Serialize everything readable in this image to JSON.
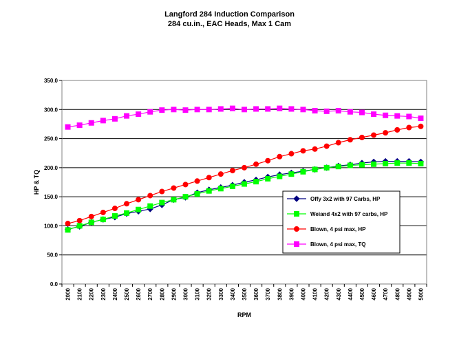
{
  "chart_data": {
    "type": "line",
    "title": "Langford 284 Induction Comparison",
    "subtitle": "284 cu.in., EAC Heads, Max 1 Cam",
    "xlabel": "RPM",
    "ylabel": "HP & TQ",
    "ylim": [
      0,
      350
    ],
    "yticks": [
      "0.0",
      "50.0",
      "100.0",
      "150.0",
      "200.0",
      "250.0",
      "300.0",
      "350.0"
    ],
    "grid": "horizontal",
    "legend_position": "right",
    "categories": [
      "2000",
      "2100",
      "2200",
      "2300",
      "2400",
      "2500",
      "2600",
      "2700",
      "2800",
      "2900",
      "3000",
      "3100",
      "3200",
      "3300",
      "3400",
      "3500",
      "3600",
      "3700",
      "3800",
      "3900",
      "4000",
      "4100",
      "4200",
      "4300",
      "4400",
      "4500",
      "4600",
      "4700",
      "4800",
      "4900",
      "5000"
    ],
    "series": [
      {
        "name": "Offy 3x2 with 97 Carbs, HP",
        "color": "#000080",
        "marker": "diamond",
        "values": [
          94,
          99,
          106,
          111,
          115,
          121,
          125,
          129,
          136,
          145,
          149,
          157,
          162,
          166,
          170,
          175,
          179,
          184,
          188,
          191,
          194,
          197,
          200,
          203,
          205,
          208,
          210,
          211,
          211,
          211,
          210
        ]
      },
      {
        "name": "Weiand 4x2 with 97 carbs, HP",
        "color": "#00ff00",
        "marker": "square",
        "values": [
          93,
          100,
          106,
          111,
          117,
          122,
          128,
          134,
          140,
          145,
          150,
          155,
          160,
          164,
          168,
          172,
          176,
          181,
          185,
          189,
          193,
          197,
          200,
          202,
          204,
          205,
          206,
          207,
          208,
          208,
          207
        ]
      },
      {
        "name": "Blown, 4 psi max, HP",
        "color": "#ff0000",
        "marker": "circle",
        "values": [
          104,
          109,
          116,
          123,
          130,
          138,
          145,
          152,
          159,
          165,
          171,
          177,
          183,
          189,
          195,
          200,
          206,
          212,
          219,
          224,
          229,
          232,
          237,
          243,
          248,
          252,
          256,
          260,
          265,
          269,
          271
        ]
      },
      {
        "name": "Blown, 4 psi max, TQ",
        "color": "#ff00ff",
        "marker": "square",
        "values": [
          270,
          273,
          277,
          281,
          284,
          289,
          292,
          296,
          299,
          300,
          299,
          300,
          300,
          301,
          302,
          300,
          301,
          301,
          302,
          301,
          300,
          298,
          297,
          298,
          296,
          295,
          292,
          290,
          289,
          288,
          285
        ]
      }
    ]
  }
}
